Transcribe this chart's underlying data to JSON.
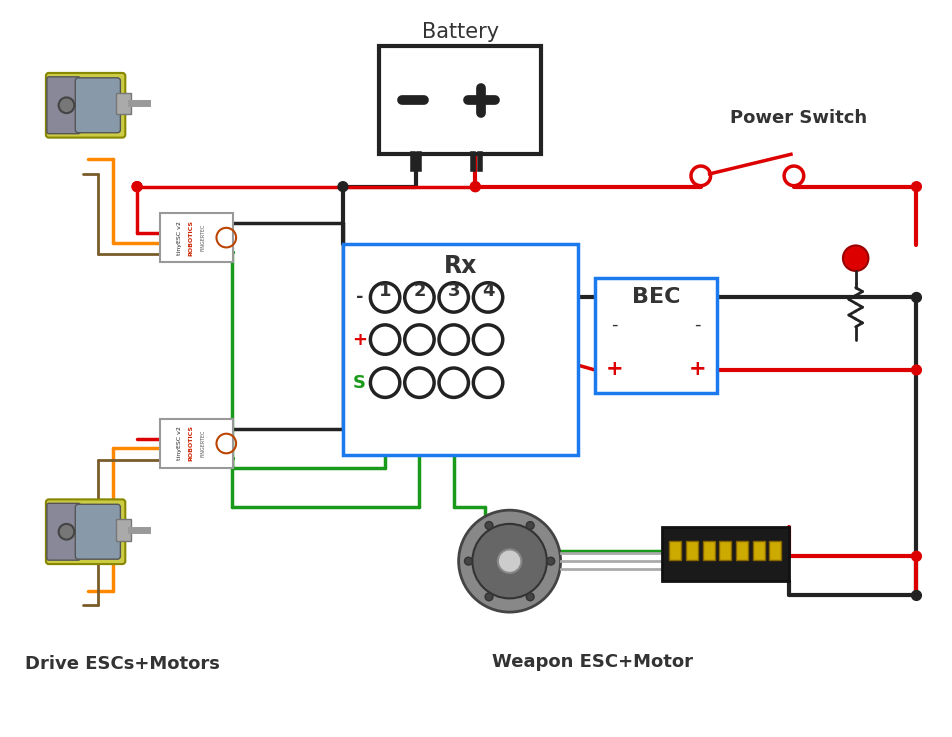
{
  "bg_color": "#ffffff",
  "wire_red": "#dd0000",
  "wire_black": "#222222",
  "wire_green": "#1a9a1a",
  "wire_orange": "#ff8800",
  "wire_brown": "#7a5c2a",
  "box_blue": "#1a7aee",
  "text_dark": "#333333",
  "text_red": "#dd0000",
  "text_green": "#1a9a1a",
  "labels": {
    "battery": "Battery",
    "power_switch": "Power Switch",
    "rx": "Rx",
    "bec": "BEC",
    "drive_escs": "Drive ESCs+Motors",
    "weapon_esc": "Weapon ESC+Motor"
  },
  "rx_channels": [
    "1",
    "2",
    "3",
    "4"
  ],
  "rx_row_labels": [
    "-",
    "+",
    "S"
  ],
  "bec_minus": [
    "-",
    "-"
  ],
  "bec_plus": [
    "+",
    "+"
  ]
}
